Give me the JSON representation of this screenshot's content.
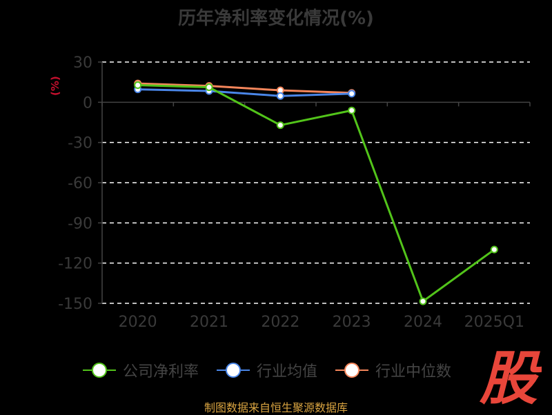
{
  "title": "历年净利率变化情况(%)",
  "footer": "制图数据来自恒生聚源数据库",
  "logo_char": "股",
  "colors": {
    "company": "#52c41a",
    "industry_avg": "#4a86e8",
    "industry_median": "#f5865b",
    "axis_text": "#3a3a3a",
    "grid": "#ffffff",
    "unit": "#c8102e",
    "logo": "#e8463a",
    "footer": "#d9a441"
  },
  "chart_data": {
    "type": "line",
    "title": "历年净利率变化情况(%)",
    "xlabel": "",
    "ylabel": "(%)",
    "categories": [
      "2020",
      "2021",
      "2022",
      "2023",
      "2024",
      "2025Q1"
    ],
    "ylim": [
      -150,
      30
    ],
    "yticks": [
      30,
      0,
      -30,
      -60,
      -90,
      -120,
      -150
    ],
    "grid": true,
    "legend_position": "bottom",
    "series": [
      {
        "name": "公司净利率",
        "key": "company",
        "values": [
          12.79,
          11.2,
          -17.1,
          -6.1,
          -148.5,
          -109.9
        ]
      },
      {
        "name": "行业均值",
        "key": "industry_avg",
        "values": [
          9.6,
          8.4,
          4.7,
          6.4,
          null,
          null
        ]
      },
      {
        "name": "行业中位数",
        "key": "industry_median",
        "values": [
          14.0,
          12.2,
          8.9,
          7.0,
          null,
          null
        ]
      }
    ]
  }
}
